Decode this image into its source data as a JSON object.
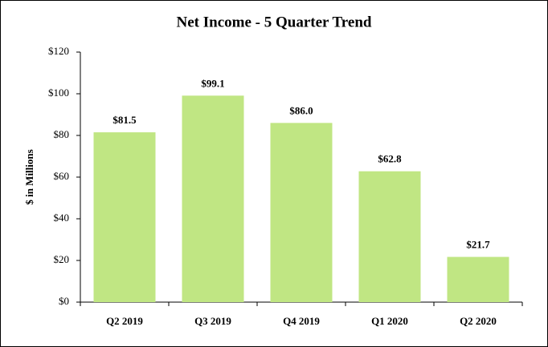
{
  "chart_data": {
    "type": "bar",
    "title": "Net Income - 5 Quarter Trend",
    "y_label": "$ in Millions",
    "categories": [
      "Q2 2019",
      "Q3 2019",
      "Q4 2019",
      "Q1 2020",
      "Q2 2020"
    ],
    "values": [
      81.5,
      99.1,
      86.0,
      62.8,
      21.7
    ],
    "value_labels": [
      "$81.5",
      "$99.1",
      "$86.0",
      "$62.8",
      "$21.7"
    ],
    "color": "#c0e683",
    "ylim": [
      0,
      120
    ],
    "yticks": [
      {
        "value": 0,
        "label": "$0"
      },
      {
        "value": 20,
        "label": "$20"
      },
      {
        "value": 40,
        "label": "$40"
      },
      {
        "value": 60,
        "label": "$60"
      },
      {
        "value": 80,
        "label": "$80"
      },
      {
        "value": 100,
        "label": "$100"
      },
      {
        "value": 120,
        "label": "$120"
      }
    ],
    "grid": false
  }
}
